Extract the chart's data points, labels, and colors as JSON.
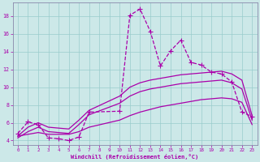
{
  "xlabel": "Windchill (Refroidissement éolien,°C)",
  "background_color": "#cce8e8",
  "line_color": "#aa00aa",
  "grid_color": "#99cccc",
  "spine_color": "#8888aa",
  "xlim": [
    -0.5,
    23.5
  ],
  "ylim": [
    3.5,
    19.5
  ],
  "xticks": [
    0,
    1,
    2,
    3,
    4,
    5,
    6,
    7,
    8,
    9,
    10,
    11,
    12,
    13,
    14,
    15,
    16,
    17,
    18,
    19,
    20,
    21,
    22,
    23
  ],
  "yticks": [
    4,
    6,
    8,
    10,
    12,
    14,
    16,
    18
  ],
  "s1_x": [
    0,
    1,
    2,
    3,
    4,
    5,
    6,
    7,
    10,
    11,
    12,
    13,
    14,
    15,
    16,
    17,
    18,
    19,
    20,
    21,
    22,
    23
  ],
  "s1_y": [
    4.8,
    6.1,
    5.8,
    4.3,
    4.2,
    4.0,
    4.4,
    7.2,
    7.3,
    18.1,
    18.8,
    16.3,
    12.4,
    14.1,
    15.3,
    12.8,
    12.5,
    11.7,
    11.5,
    10.6,
    7.2,
    6.7
  ],
  "s2_x": [
    0,
    1,
    2,
    3,
    4,
    5,
    6,
    7,
    10,
    11,
    12,
    13,
    14,
    15,
    16,
    17,
    18,
    19,
    20,
    21,
    22,
    23
  ],
  "s2_y": [
    4.5,
    5.5,
    6.0,
    5.5,
    5.4,
    5.3,
    6.3,
    7.4,
    9.0,
    10.0,
    10.5,
    10.8,
    11.0,
    11.2,
    11.4,
    11.5,
    11.6,
    11.7,
    11.8,
    11.5,
    10.8,
    6.8
  ],
  "s3_x": [
    0,
    1,
    2,
    3,
    4,
    5,
    6,
    7,
    10,
    11,
    12,
    13,
    14,
    15,
    16,
    17,
    18,
    19,
    20,
    21,
    22,
    23
  ],
  "s3_y": [
    4.3,
    5.0,
    5.5,
    5.0,
    4.9,
    4.8,
    5.8,
    6.9,
    8.2,
    9.0,
    9.5,
    9.8,
    10.0,
    10.2,
    10.4,
    10.5,
    10.6,
    10.7,
    10.8,
    10.5,
    9.8,
    6.3
  ],
  "s4_x": [
    0,
    1,
    2,
    3,
    4,
    5,
    6,
    7,
    10,
    11,
    12,
    13,
    14,
    15,
    16,
    17,
    18,
    19,
    20,
    21,
    22,
    23
  ],
  "s4_y": [
    4.5,
    4.7,
    4.9,
    4.7,
    4.7,
    4.7,
    5.0,
    5.5,
    6.3,
    6.8,
    7.2,
    7.5,
    7.8,
    8.0,
    8.2,
    8.4,
    8.6,
    8.7,
    8.8,
    8.7,
    8.3,
    5.8
  ]
}
